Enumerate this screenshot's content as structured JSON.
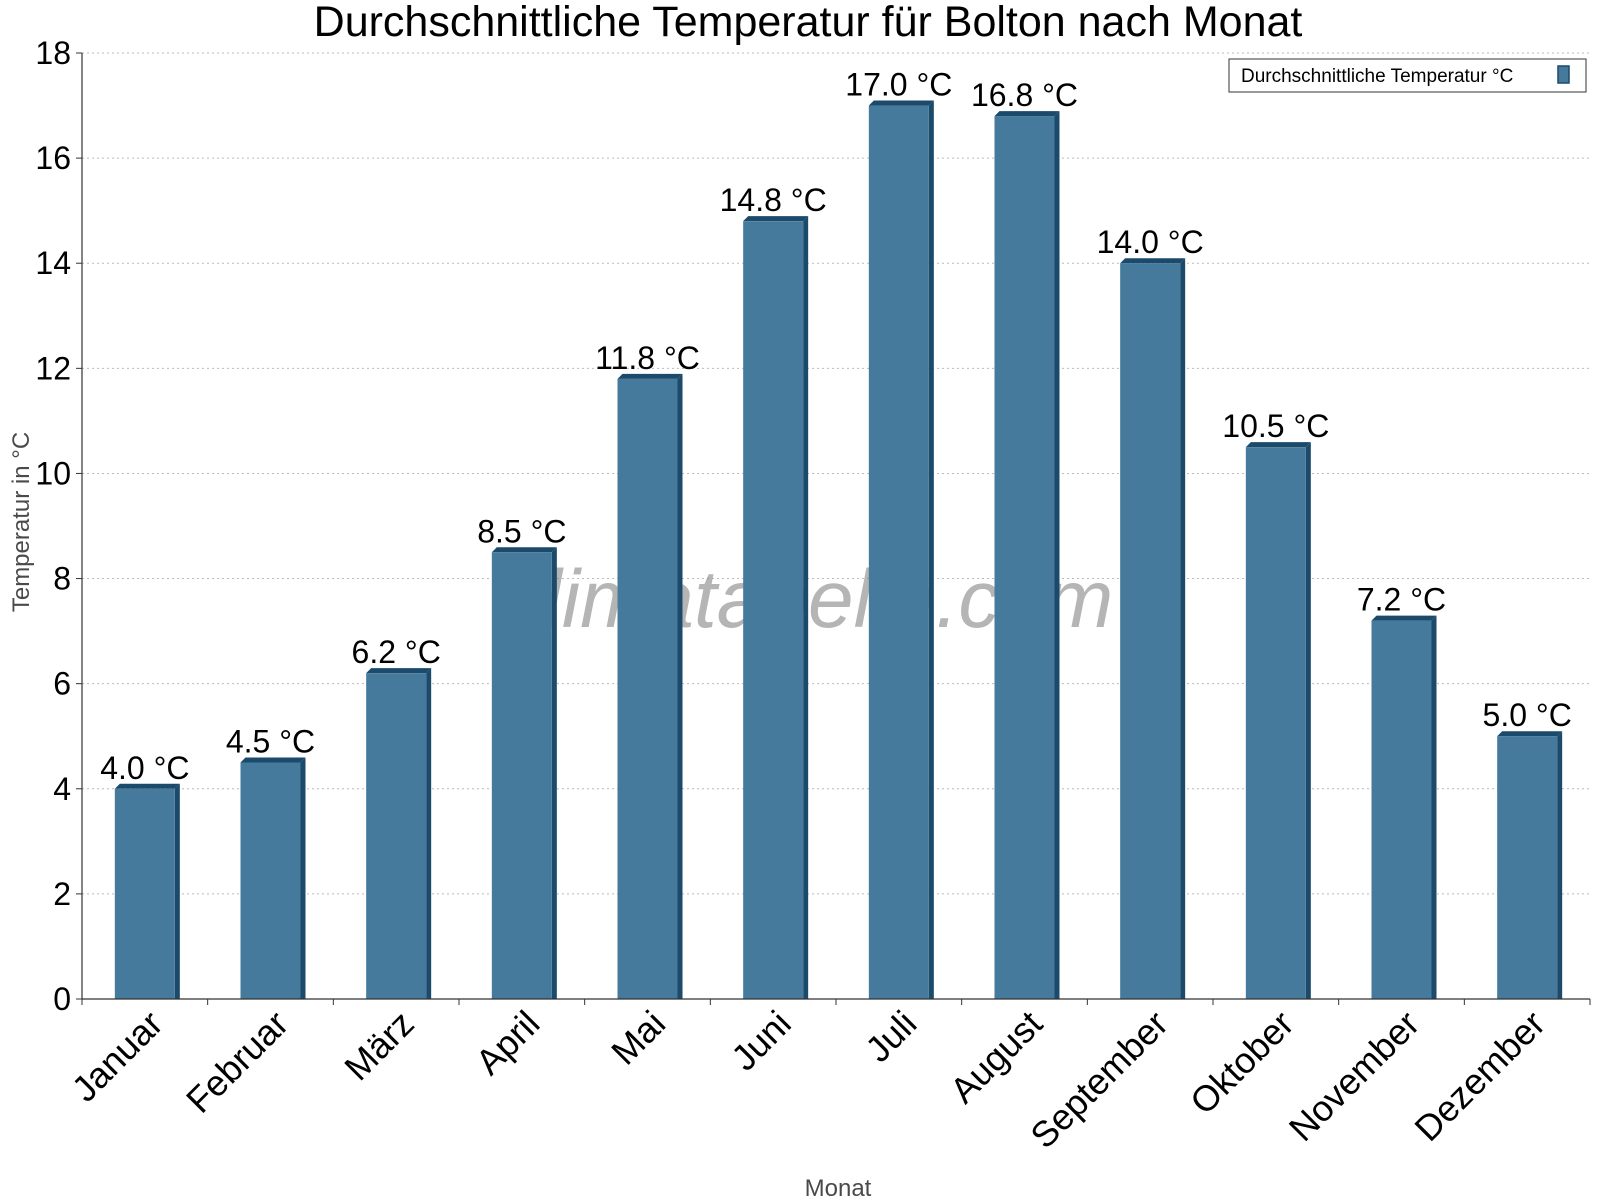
{
  "chart_data": {
    "type": "bar",
    "title": "Durchschnittliche Temperatur für Bolton nach Monat",
    "xlabel": "Monat",
    "ylabel": "Temperatur in °C",
    "categories": [
      "Januar",
      "Februar",
      "März",
      "April",
      "Mai",
      "Juni",
      "Juli",
      "August",
      "September",
      "Oktober",
      "November",
      "Dezember"
    ],
    "series": [
      {
        "name": "Durchschnittliche Temperatur °C",
        "values": [
          4.0,
          4.5,
          6.2,
          8.5,
          11.8,
          14.8,
          17.0,
          16.8,
          14.0,
          10.5,
          7.2,
          5.0
        ]
      }
    ],
    "data_labels": [
      "4.0 °C",
      "4.5 °C",
      "6.2 °C",
      "8.5 °C",
      "11.8 °C",
      "14.8 °C",
      "17.0 °C",
      "16.8 °C",
      "14.0 °C",
      "10.5 °C",
      "7.2 °C",
      "5.0 °C"
    ],
    "y_ticks": [
      "0",
      "2",
      "4",
      "6",
      "8",
      "10",
      "12",
      "14",
      "16",
      "18"
    ],
    "ylim": [
      0,
      18
    ],
    "grid": true,
    "legend_position": "top-right",
    "watermark": "klimatabelle.com",
    "colors": {
      "bar": "#467a9c",
      "bar_side": "#1c4a6b",
      "grid": "#bbbbbb"
    }
  }
}
